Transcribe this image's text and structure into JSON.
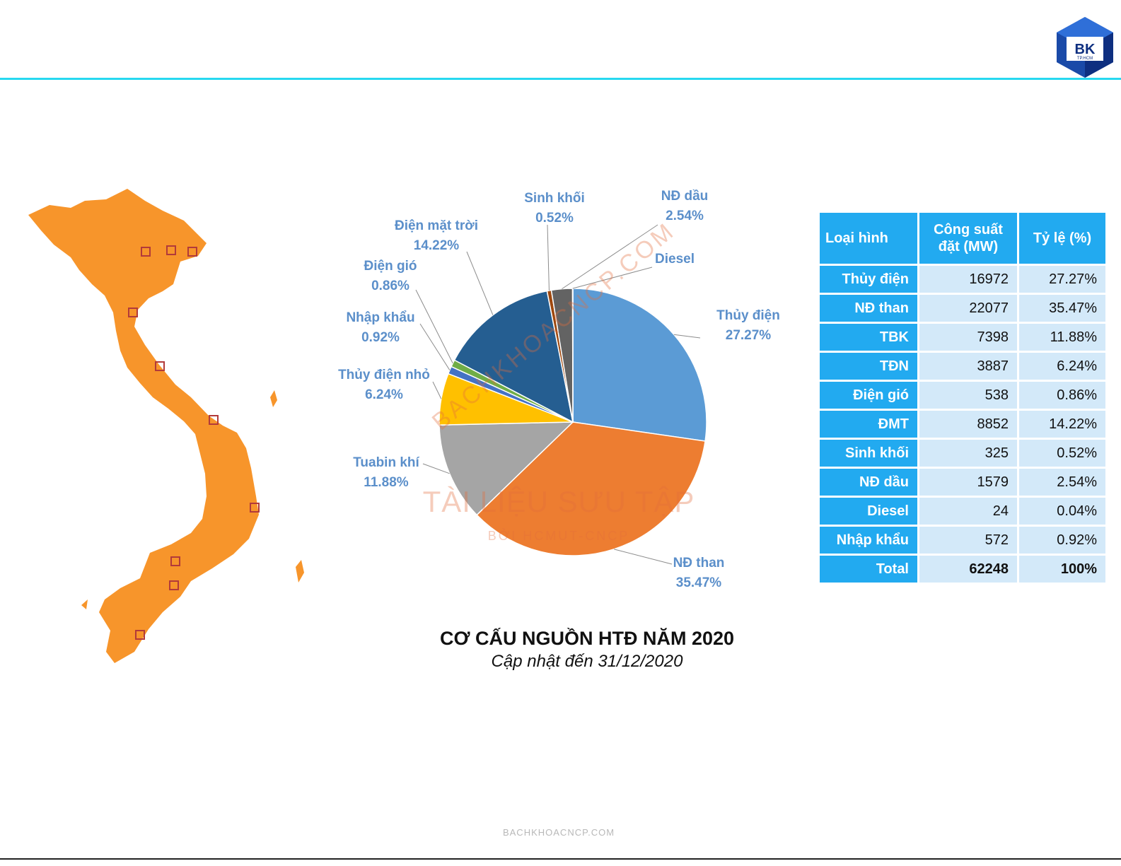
{
  "chart_data": {
    "type": "pie",
    "title": "CƠ CẤU NGUỒN HTĐ NĂM 2020",
    "subtitle": "Cập nhật đến 31/12/2020",
    "slices": [
      {
        "name": "Thủy điện",
        "value": 27.27,
        "label": "27.27%",
        "color": "#5b9bd5"
      },
      {
        "name": "NĐ than",
        "value": 35.47,
        "label": "35.47%",
        "color": "#ed7d31"
      },
      {
        "name": "Tuabin khí",
        "value": 11.88,
        "label": "11.88%",
        "color": "#a5a5a5"
      },
      {
        "name": "Thủy điện nhỏ",
        "value": 6.24,
        "label": "6.24%",
        "color": "#ffc000"
      },
      {
        "name": "Nhập khẩu",
        "value": 0.92,
        "label": "0.92%",
        "color": "#4472c4"
      },
      {
        "name": "Điện gió",
        "value": 0.86,
        "label": "0.86%",
        "color": "#70ad47"
      },
      {
        "name": "Điện mặt trời",
        "value": 14.22,
        "label": "14.22%",
        "color": "#255e91"
      },
      {
        "name": "Sinh khối",
        "value": 0.52,
        "label": "0.52%",
        "color": "#9e480e"
      },
      {
        "name": "NĐ dầu",
        "value": 2.54,
        "label": "2.54%",
        "color": "#636363"
      },
      {
        "name": "Diesel",
        "value": 0.04,
        "label": "",
        "color": "#997300"
      }
    ]
  },
  "table": {
    "headers": [
      "Loại hình",
      "Công suất đặt (MW)",
      "Tỷ lệ (%)"
    ],
    "rows": [
      {
        "type": "Thủy điện",
        "mw": "16972",
        "pct": "27.27%"
      },
      {
        "type": "NĐ than",
        "mw": "22077",
        "pct": "35.47%"
      },
      {
        "type": "TBK",
        "mw": "7398",
        "pct": "11.88%"
      },
      {
        "type": "TĐN",
        "mw": "3887",
        "pct": "6.24%"
      },
      {
        "type": "Điện gió",
        "mw": "538",
        "pct": "0.86%"
      },
      {
        "type": "ĐMT",
        "mw": "8852",
        "pct": "14.22%"
      },
      {
        "type": "Sinh khối",
        "mw": "325",
        "pct": "0.52%"
      },
      {
        "type": "NĐ dầu",
        "mw": "1579",
        "pct": "2.54%"
      },
      {
        "type": "Diesel",
        "mw": "24",
        "pct": "0.04%"
      },
      {
        "type": "Nhập khẩu",
        "mw": "572",
        "pct": "0.92%"
      }
    ],
    "total": {
      "type": "Total",
      "mw": "62248",
      "pct": "100%"
    }
  },
  "watermark": {
    "main": "TÀI LIỆU SƯU TẬP",
    "sub": "BỞI HCMUT-CNCP",
    "diagonal": "BACHKHOACNCP.COM",
    "footer": "BACHKHOACNCP.COM"
  },
  "logo": {
    "text": "BK",
    "subtext": "TP.HCM"
  },
  "colors": {
    "accent_line": "#27d8f0",
    "table_header": "#22aaf0",
    "table_cell": "#d3e9f9",
    "map": "#f7952b"
  }
}
